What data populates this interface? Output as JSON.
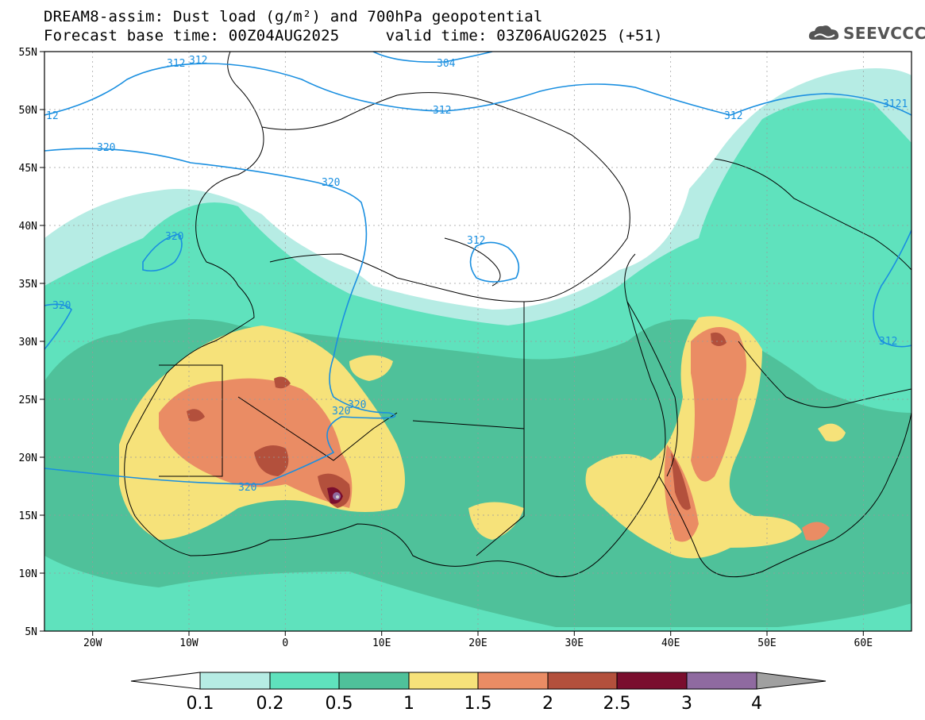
{
  "title": {
    "line1": "DREAM8-assim: Dust load (g/m²) and 700hPa geopotential",
    "line2": "Forecast base time: 00Z04AUG2025     valid time: 03Z06AUG2025 (+51)"
  },
  "logo": {
    "text": "SEEVCCC",
    "icon": "cloud-icon"
  },
  "map": {
    "lat_range": [
      5,
      55
    ],
    "lon_range": [
      -25,
      65
    ],
    "lat_ticks": [
      "55N",
      "50N",
      "45N",
      "40N",
      "35N",
      "30N",
      "25N",
      "20N",
      "15N",
      "10N",
      "5N"
    ],
    "lon_ticks": [
      "20W",
      "10W",
      "0",
      "10E",
      "20E",
      "30E",
      "40E",
      "50E",
      "60E"
    ],
    "gridlines": true
  },
  "contours": {
    "variable": "700hPa geopotential",
    "labels": [
      "312",
      "312",
      "304",
      "312",
      "312",
      "3121",
      "320",
      "320",
      "320",
      "312",
      "320",
      "320",
      "320",
      "320",
      "312",
      "12"
    ]
  },
  "colorbar": {
    "levels": [
      "0.1",
      "0.2",
      "0.5",
      "1",
      "1.5",
      "2",
      "2.5",
      "3",
      "4"
    ],
    "colors": [
      "#ffffff",
      "#b6ece4",
      "#5fe2bd",
      "#4fc19a",
      "#f6e27a",
      "#ea8c64",
      "#b3503c",
      "#7a0e2e",
      "#8f6aa0",
      "#a0a0a0"
    ]
  }
}
